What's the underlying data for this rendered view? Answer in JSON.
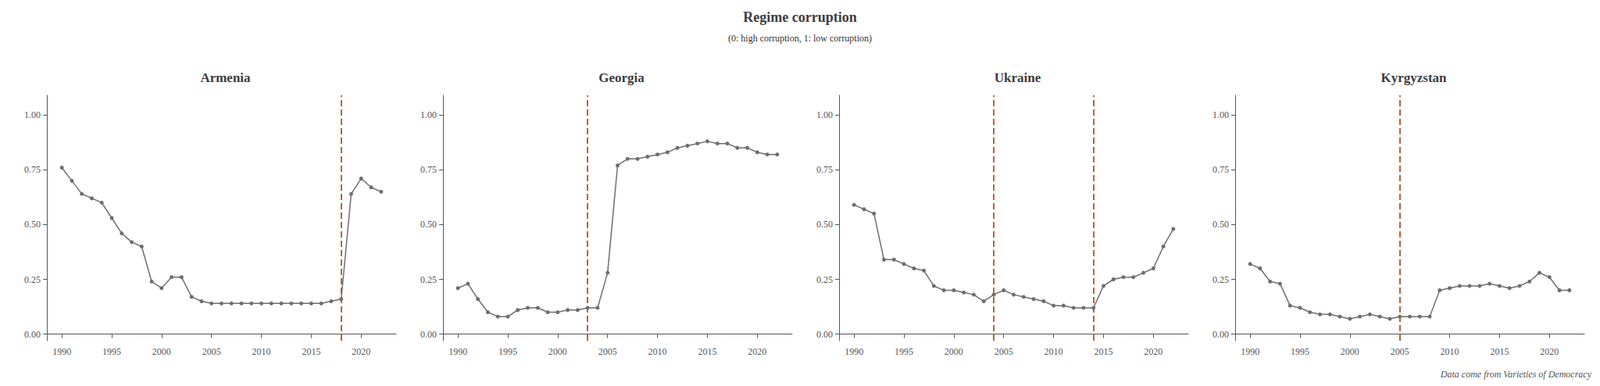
{
  "title": "Regime corruption",
  "subtitle": "(0: high corruption, 1: low corruption)",
  "annotations": [
    "Data come from Varieties of Democracy"
  ],
  "chart_data": [
    {
      "type": "line",
      "title": "Armenia",
      "color": "#6e6e6e",
      "marker": "circle",
      "x": [
        1990,
        1991,
        1992,
        1993,
        1994,
        1995,
        1996,
        1997,
        1998,
        1999,
        2000,
        2001,
        2002,
        2003,
        2004,
        2005,
        2006,
        2007,
        2008,
        2009,
        2010,
        2011,
        2012,
        2013,
        2014,
        2015,
        2016,
        2017,
        2018,
        2019,
        2020,
        2021,
        2022
      ],
      "values": [
        0.76,
        0.7,
        0.64,
        0.62,
        0.6,
        0.53,
        0.46,
        0.42,
        0.4,
        0.24,
        0.21,
        0.26,
        0.26,
        0.17,
        0.15,
        0.14,
        0.14,
        0.14,
        0.14,
        0.14,
        0.14,
        0.14,
        0.14,
        0.14,
        0.14,
        0.14,
        0.14,
        0.15,
        0.16,
        0.64,
        0.71,
        0.67,
        0.65
      ],
      "vlines": [
        {
          "x": 2018,
          "color": "#C0603A",
          "line_style": "dashed"
        }
      ],
      "xlim": [
        1988.5,
        2023.5
      ],
      "xticks": [
        1990,
        1995,
        2000,
        2005,
        2010,
        2015,
        2020
      ],
      "ylim": [
        -0.03,
        1.09
      ],
      "yticks": [
        {
          "value": 0,
          "label": "0.00"
        },
        0.25,
        {
          "value": 0.5,
          "label": "0.50"
        },
        0.75,
        {
          "value": 1,
          "label": "1.00"
        }
      ],
      "grid": false
    },
    {
      "type": "line",
      "title": "Georgia",
      "color": "#6e6e6e",
      "marker": "circle",
      "x": [
        1990,
        1991,
        1992,
        1993,
        1994,
        1995,
        1996,
        1997,
        1998,
        1999,
        2000,
        2001,
        2002,
        2003,
        2004,
        2005,
        2006,
        2007,
        2008,
        2009,
        2010,
        2011,
        2012,
        2013,
        2014,
        2015,
        2016,
        2017,
        2018,
        2019,
        2020,
        2021,
        2022
      ],
      "values": [
        0.21,
        0.23,
        0.16,
        0.1,
        0.08,
        0.08,
        0.11,
        0.12,
        0.12,
        0.1,
        0.1,
        0.11,
        0.11,
        0.12,
        0.12,
        0.28,
        0.77,
        0.8,
        0.8,
        0.81,
        0.82,
        0.83,
        0.85,
        0.86,
        0.87,
        0.88,
        0.87,
        0.87,
        0.85,
        0.85,
        0.83,
        0.82,
        0.82
      ],
      "vlines": [
        {
          "x": 2003,
          "color": "#C0603A",
          "line_style": "dashed"
        }
      ],
      "xlim": [
        1988.5,
        2023.5
      ],
      "xticks": [
        1990,
        1995,
        2000,
        2005,
        2010,
        2015,
        2020
      ],
      "ylim": [
        -0.03,
        1.09
      ],
      "yticks": [
        {
          "value": 0,
          "label": "0.00"
        },
        0.25,
        {
          "value": 0.5,
          "label": "0.50"
        },
        0.75,
        {
          "value": 1,
          "label": "1.00"
        }
      ],
      "grid": false
    },
    {
      "type": "line",
      "title": "Ukraine",
      "color": "#6e6e6e",
      "marker": "circle",
      "x": [
        1990,
        1991,
        1992,
        1993,
        1994,
        1995,
        1996,
        1997,
        1998,
        1999,
        2000,
        2001,
        2002,
        2003,
        2004,
        2005,
        2006,
        2007,
        2008,
        2009,
        2010,
        2011,
        2012,
        2013,
        2014,
        2015,
        2016,
        2017,
        2018,
        2019,
        2020,
        2021,
        2022
      ],
      "values": [
        0.59,
        0.57,
        0.55,
        0.34,
        0.34,
        0.32,
        0.3,
        0.29,
        0.22,
        0.2,
        0.2,
        0.19,
        0.18,
        0.15,
        0.18,
        0.2,
        0.18,
        0.17,
        0.16,
        0.15,
        0.13,
        0.13,
        0.12,
        0.12,
        0.12,
        0.22,
        0.25,
        0.26,
        0.26,
        0.28,
        0.3,
        0.4,
        0.48
      ],
      "vlines": [
        {
          "x": 2004,
          "color": "#C0603A",
          "line_style": "dashed"
        },
        {
          "x": 2014,
          "color": "#C0603A",
          "line_style": "dashed"
        }
      ],
      "xlim": [
        1988.5,
        2023.5
      ],
      "xticks": [
        1990,
        1995,
        2000,
        2005,
        2010,
        2015,
        2020
      ],
      "ylim": [
        -0.03,
        1.09
      ],
      "yticks": [
        {
          "value": 0,
          "label": "0.00"
        },
        0.25,
        {
          "value": 0.5,
          "label": "0.50"
        },
        0.75,
        {
          "value": 1,
          "label": "1.00"
        }
      ],
      "grid": false
    },
    {
      "type": "line",
      "title": "Kyrgyzstan",
      "color": "#6e6e6e",
      "marker": "circle",
      "x": [
        1990,
        1991,
        1992,
        1993,
        1994,
        1995,
        1996,
        1997,
        1998,
        1999,
        2000,
        2001,
        2002,
        2003,
        2004,
        2005,
        2006,
        2007,
        2008,
        2009,
        2010,
        2011,
        2012,
        2013,
        2014,
        2015,
        2016,
        2017,
        2018,
        2019,
        2020,
        2021,
        2022
      ],
      "values": [
        0.32,
        0.3,
        0.24,
        0.23,
        0.13,
        0.12,
        0.1,
        0.09,
        0.09,
        0.08,
        0.07,
        0.08,
        0.09,
        0.08,
        0.07,
        0.08,
        0.08,
        0.08,
        0.08,
        0.2,
        0.21,
        0.22,
        0.22,
        0.22,
        0.23,
        0.22,
        0.21,
        0.22,
        0.24,
        0.28,
        0.26,
        0.2,
        0.2
      ],
      "vlines": [
        {
          "x": 2005,
          "color": "#C0603A",
          "line_style": "dashed"
        }
      ],
      "xlim": [
        1988.5,
        2023.5
      ],
      "xticks": [
        1990,
        1995,
        2000,
        2005,
        2010,
        2015,
        2020
      ],
      "ylim": [
        -0.03,
        1.09
      ],
      "yticks": [
        {
          "value": 0,
          "label": "0.00"
        },
        0.25,
        {
          "value": 0.5,
          "label": "0.50"
        },
        0.75,
        {
          "value": 1,
          "label": "1.00"
        }
      ],
      "grid": false
    }
  ]
}
